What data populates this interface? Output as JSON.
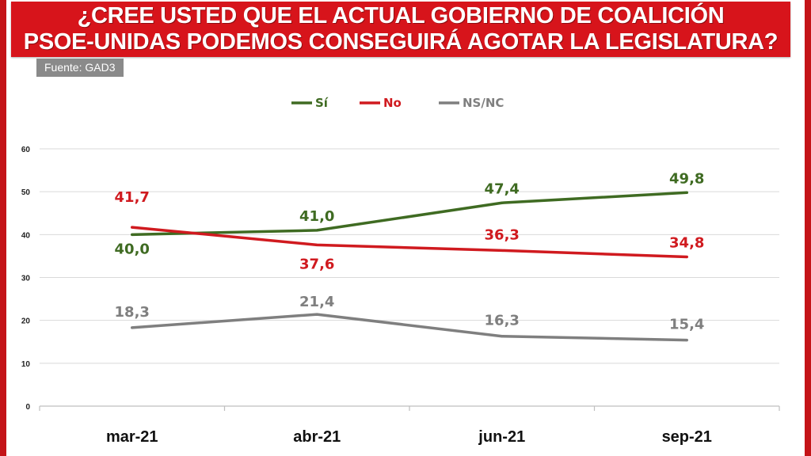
{
  "header": {
    "title_line1": "¿CREE USTED QUE EL ACTUAL GOBIERNO DE COALICIÓN",
    "title_line2": "PSOE-UNIDAS PODEMOS CONSEGUIRÁ AGOTAR LA LEGISLATURA?",
    "source": "Fuente: GAD3",
    "banner_color": "#d7141b"
  },
  "chart_data": {
    "type": "line",
    "title": "¿CREE USTED QUE EL ACTUAL GOBIERNO DE COALICIÓN PSOE-UNIDAS PODEMOS CONSEGUIRÁ AGOTAR LA LEGISLATURA?",
    "categories": [
      "mar-21",
      "abr-21",
      "jun-21",
      "sep-21"
    ],
    "series": [
      {
        "name": "Sí",
        "color": "#3f6b22",
        "values": [
          40.0,
          41.0,
          47.4,
          49.8
        ],
        "labels": [
          "40,0",
          "41,0",
          "47,4",
          "49,8"
        ]
      },
      {
        "name": "No",
        "color": "#d01a1f",
        "values": [
          41.7,
          37.6,
          36.3,
          34.8
        ],
        "labels": [
          "41,7",
          "37,6",
          "36,3",
          "34,8"
        ]
      },
      {
        "name": "NS/NC",
        "color": "#7f7f7f",
        "values": [
          18.3,
          21.4,
          16.3,
          15.4
        ],
        "labels": [
          "18,3",
          "21,4",
          "16,3",
          "15,4"
        ]
      }
    ],
    "ylim": [
      0,
      60
    ],
    "yticks": [
      "0",
      "10",
      "20",
      "30",
      "40",
      "50",
      "60"
    ],
    "xlabel": "",
    "ylabel": "",
    "grid": true,
    "legend_position": "top-left"
  }
}
